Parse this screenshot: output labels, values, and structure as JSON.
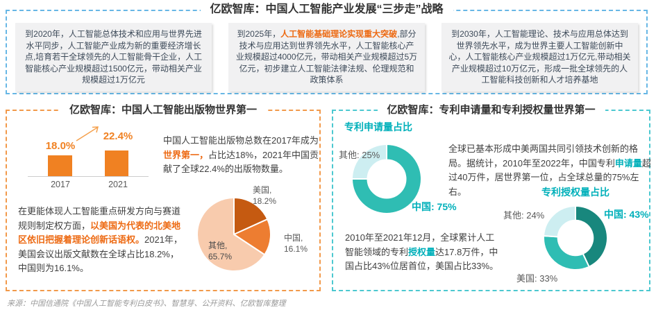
{
  "top_section": {
    "title": "亿欧智库：中国人工智能产业发展“三步走”战略",
    "boxes": [
      {
        "pre": "到2020年，",
        "highlight": "",
        "post": "人工智能总体技术和应用与世界先进水平同步，人工智能产业成为新的重要经济增长点,培育若干全球领先的人工智能骨干企业，人工智能核心产业规模超过1500亿元，带动相关产业规模超过1万亿元"
      },
      {
        "pre": "到2025年，",
        "highlight": "人工智能基础理论实现重大突破",
        "post": ",部分技术与应用达到世界领先水平，人工智能核心产业规模超过4000亿元，带动相关产业规模超过5万亿元，初步建立人工智能法律法规、伦理规范和政策体系"
      },
      {
        "pre": "到2030年，",
        "highlight": "",
        "post": "人工智能理论、技术与应用总体达到世界领先水平，成为世界主要人工智能创新中心，人工智能核心产业规模超过1万亿元,带动相关产业规模超过10万亿元，形成一批全球领先的人工智能科技创新和人才培养基地"
      }
    ]
  },
  "left_section": {
    "title": "亿欧智库：中国人工智能出版物世界第一",
    "bar_value_1": "18.0%",
    "bar_value_2": "22.4%",
    "year_1": "2017",
    "year_2": "2021",
    "paragraph1": {
      "pre": "中国人工智能出版物总数在2017年成为",
      "highlight": "世界第一，",
      "post": "占比达18%，2021年中国贡献了全球22.4%的出版物数量。"
    },
    "paragraph2": {
      "pre": "在更能体现人工智能重点研发方向与赛道规则制定权方面，",
      "highlight": "以美国为代表的北美地区依旧把握着理论创新话语权。",
      "post": "2021年，美国会议出版文献数在全球占比18.2%，中国则为16.1%。"
    },
    "pie_labels": {
      "us": {
        "line1": "美国,",
        "line2": "18.2%"
      },
      "china": {
        "line1": "中国,",
        "line2": "16.1%"
      },
      "other": {
        "line1": "其他,",
        "line2": "65.7%"
      }
    }
  },
  "right_section": {
    "title": "亿欧智库：专利申请量和专利授权量世界第一",
    "chart1_title": "专利申请量占比",
    "chart2_title": "专利授权量占比",
    "paragraph1": {
      "pre": "全球已基本形成中美两国共同引领技术创新的格局。据统计，2010年至2022年，中国专利",
      "highlight": "申请量",
      "post": "超过40万件，居世界第一位，占全球总量的75%左右。"
    },
    "paragraph2": {
      "pre": "2010年至2021年12月，全球累计人工智能领域的专利",
      "highlight": "授权量",
      "post": "达17.8万件，中国占比43%位居首位，美国占比33%。"
    },
    "donut1_labels": {
      "other": "其他: 25%",
      "china": "中国: 75%"
    },
    "donut2_labels": {
      "other": "其他: 24%",
      "china": "中国: 43%",
      "us": "美国: 33%"
    }
  },
  "source": "来源：中国信通院《中国人工智能专利白皮书》、智慧芽、公开资料、亿欧智库整理",
  "colors": {
    "top_border_blue": "#67B7E5",
    "left_border_orange": "#F2994A",
    "right_border_teal": "#4CC8D0",
    "orange_accent": "#F08122",
    "orange_highlight": "#ED6A13",
    "teal_accent": "#00B0BA",
    "box_background": "#F1F1F2",
    "box_text": "#3D4A59"
  },
  "chart_data": [
    {
      "type": "bar",
      "title": "中国人工智能出版物占全球比重",
      "categories": [
        "2017",
        "2021"
      ],
      "values": [
        18.0,
        22.4
      ],
      "value_labels": [
        "18.0%",
        "22.4%"
      ],
      "unit": "%",
      "ylim": [
        0,
        25
      ],
      "bar_color": "#F08122",
      "grid": false
    },
    {
      "type": "pie",
      "title": "2021年全球人工智能会议出版文献占比",
      "slices": [
        {
          "label": "美国",
          "value": 18.2,
          "color": "#C55A11"
        },
        {
          "label": "中国",
          "value": 16.1,
          "color": "#ED7D31"
        },
        {
          "label": "其他",
          "value": 65.7,
          "color": "#F8CBAD"
        }
      ],
      "start_angle_deg": -90,
      "direction": "clockwise",
      "inner_ratio": 0
    },
    {
      "type": "pie",
      "title": "专利申请量占比",
      "slices": [
        {
          "label": "中国",
          "value": 75,
          "color": "#2FBDB3"
        },
        {
          "label": "其他",
          "value": 25,
          "color": "#CDEEF1"
        }
      ],
      "start_angle_deg": -90,
      "direction": "clockwise",
      "inner_ratio": 0.55
    },
    {
      "type": "pie",
      "title": "专利授权量占比",
      "slices": [
        {
          "label": "中国",
          "value": 43,
          "color": "#18877D"
        },
        {
          "label": "美国",
          "value": 33,
          "color": "#2FBDB3"
        },
        {
          "label": "其他",
          "value": 24,
          "color": "#CDEEF1"
        }
      ],
      "start_angle_deg": -90,
      "direction": "clockwise",
      "inner_ratio": 0.55
    }
  ]
}
